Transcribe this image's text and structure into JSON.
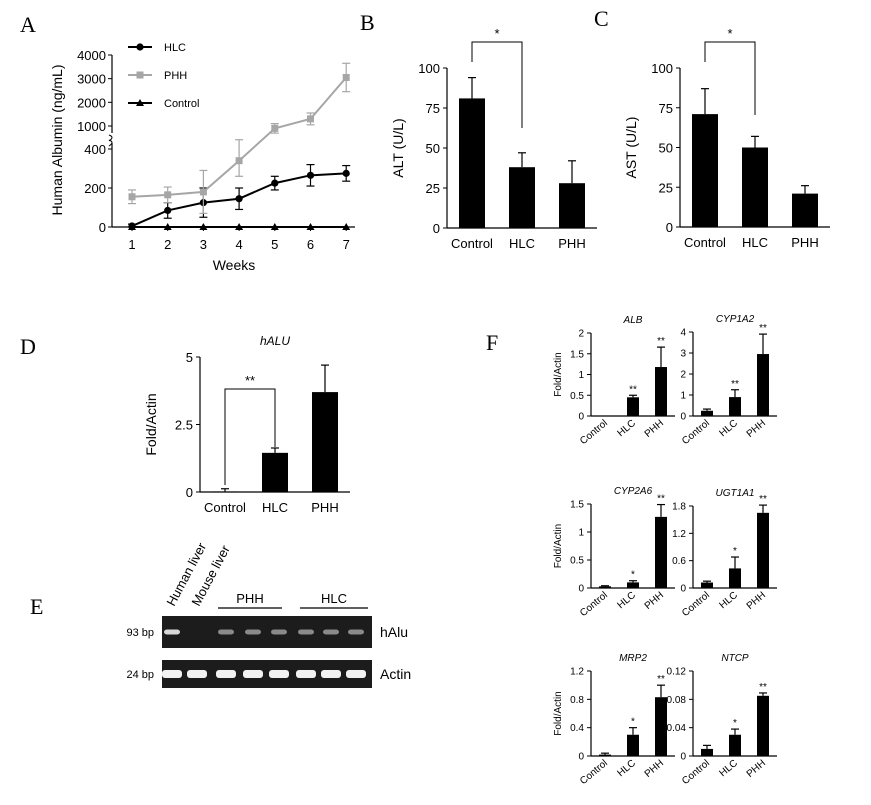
{
  "panel_labels": [
    "A",
    "B",
    "C",
    "D",
    "E",
    "F"
  ],
  "chart_data": [
    {
      "id": "A",
      "type": "line",
      "xlabel": "Weeks",
      "ylabel": "Human Albumin (ng/mL)",
      "x": [
        1,
        2,
        3,
        4,
        5,
        6,
        7
      ],
      "y_axis_broken": true,
      "y_lower_range": [
        0,
        400
      ],
      "y_lower_ticks": [
        0,
        200,
        400
      ],
      "y_upper_range": [
        1000,
        4000
      ],
      "y_upper_ticks": [
        1000,
        2000,
        3000,
        4000
      ],
      "series": [
        {
          "name": "HLC",
          "color": "#000000",
          "marker": "circle",
          "values": [
            5,
            85,
            125,
            145,
            225,
            265,
            275
          ],
          "errors": [
            10,
            40,
            75,
            55,
            35,
            55,
            40
          ]
        },
        {
          "name": "PHH",
          "color": "#a6a6a6",
          "marker": "square",
          "values": [
            155,
            165,
            180,
            340,
            900,
            1300,
            3050
          ],
          "errors": [
            35,
            40,
            110,
            80,
            200,
            250,
            600
          ]
        },
        {
          "name": "Control",
          "color": "#000000",
          "marker": "triangle",
          "values": [
            0,
            0,
            0,
            0,
            0,
            0,
            0
          ],
          "errors": [
            0,
            0,
            0,
            0,
            0,
            0,
            0
          ]
        }
      ]
    },
    {
      "id": "B",
      "type": "bar",
      "ylabel": "ALT (U/L)",
      "categories": [
        "Control",
        "HLC",
        "PHH"
      ],
      "values": [
        81,
        38,
        28
      ],
      "errors": [
        13,
        9,
        14
      ],
      "ylim": [
        0,
        100
      ],
      "yticks": [
        0,
        25,
        50,
        75,
        100
      ],
      "significance": [
        {
          "from": 0,
          "to": 1,
          "label": "*"
        }
      ]
    },
    {
      "id": "C",
      "type": "bar",
      "ylabel": "AST (U/L)",
      "categories": [
        "Control",
        "HLC",
        "PHH"
      ],
      "values": [
        71,
        50,
        21
      ],
      "errors": [
        16,
        7,
        5
      ],
      "ylim": [
        0,
        100
      ],
      "yticks": [
        0,
        25,
        50,
        75,
        100
      ],
      "significance": [
        {
          "from": 0,
          "to": 1,
          "label": "*"
        }
      ]
    },
    {
      "id": "D",
      "type": "bar",
      "title": "hALU",
      "ylabel": "Fold/Actin",
      "categories": [
        "Control",
        "HLC",
        "PHH"
      ],
      "values": [
        0.02,
        1.45,
        3.7
      ],
      "errors": [
        0.1,
        0.18,
        1.0
      ],
      "ylim": [
        0,
        5
      ],
      "yticks": [
        "0",
        "2.5",
        "5"
      ],
      "significance": [
        {
          "from": 0,
          "to": 1,
          "label": "**"
        }
      ]
    },
    {
      "id": "F1",
      "type": "bar",
      "title": "ALB",
      "ylabel": "Fold/Actin",
      "categories": [
        "Control",
        "HLC",
        "PHH"
      ],
      "values": [
        0.0,
        0.45,
        1.18
      ],
      "errors": [
        0.0,
        0.05,
        0.48
      ],
      "ylim": [
        0,
        2
      ],
      "yticks": [
        "0",
        "0.5",
        "1",
        "1.5",
        "2"
      ],
      "bar_labels": [
        "",
        "**",
        "**"
      ]
    },
    {
      "id": "F2",
      "type": "bar",
      "title": "CYP1A2",
      "categories": [
        "Control",
        "HLC",
        "PHH"
      ],
      "values": [
        0.25,
        0.9,
        2.95
      ],
      "errors": [
        0.08,
        0.35,
        0.95
      ],
      "ylim": [
        0,
        4
      ],
      "yticks": [
        "0",
        "1",
        "2",
        "3",
        "4"
      ],
      "bar_labels": [
        "",
        "**",
        "**"
      ]
    },
    {
      "id": "F3",
      "type": "bar",
      "title": "CYP2A6",
      "ylabel": "Fold/Actin",
      "categories": [
        "Control",
        "HLC",
        "PHH"
      ],
      "values": [
        0.03,
        0.1,
        1.27
      ],
      "errors": [
        0.01,
        0.03,
        0.22
      ],
      "ylim": [
        0,
        1.5
      ],
      "yticks": [
        "0",
        "0.5",
        "1",
        "1.5"
      ],
      "bar_labels": [
        "",
        "*",
        "**"
      ]
    },
    {
      "id": "F4",
      "type": "bar",
      "title": "UGT1A1",
      "categories": [
        "Control",
        "HLC",
        "PHH"
      ],
      "values": [
        0.12,
        0.43,
        1.65
      ],
      "errors": [
        0.03,
        0.25,
        0.17
      ],
      "ylim": [
        0,
        1.8
      ],
      "yticks": [
        "0",
        "0.6",
        "1.2",
        "1.8"
      ],
      "bar_labels": [
        "",
        "*",
        "**"
      ]
    },
    {
      "id": "F5",
      "type": "bar",
      "title": "MRP2",
      "ylabel": "Fold/Actin",
      "categories": [
        "Control",
        "HLC",
        "PHH"
      ],
      "values": [
        0.02,
        0.3,
        0.83
      ],
      "errors": [
        0.02,
        0.1,
        0.17
      ],
      "ylim": [
        0,
        1.2
      ],
      "yticks": [
        "0",
        "0.4",
        "0.8",
        "1.2"
      ],
      "bar_labels": [
        "",
        "*",
        "**"
      ]
    },
    {
      "id": "F6",
      "type": "bar",
      "title": "NTCP",
      "categories": [
        "Control",
        "HLC",
        "PHH"
      ],
      "values": [
        0.01,
        0.03,
        0.085
      ],
      "errors": [
        0.005,
        0.008,
        0.004
      ],
      "ylim": [
        0,
        0.12
      ],
      "yticks": [
        "0",
        "0.04",
        "0.08",
        "0.12"
      ],
      "bar_labels": [
        "",
        "*",
        "**"
      ]
    }
  ],
  "gel": {
    "lanes": [
      "Human liver",
      "Mouse liver"
    ],
    "groups": [
      "PHH",
      "HLC"
    ],
    "rows": [
      {
        "name": "hAlu",
        "size": "93 bp"
      },
      {
        "name": "Actin",
        "size": "24 bp"
      }
    ]
  }
}
